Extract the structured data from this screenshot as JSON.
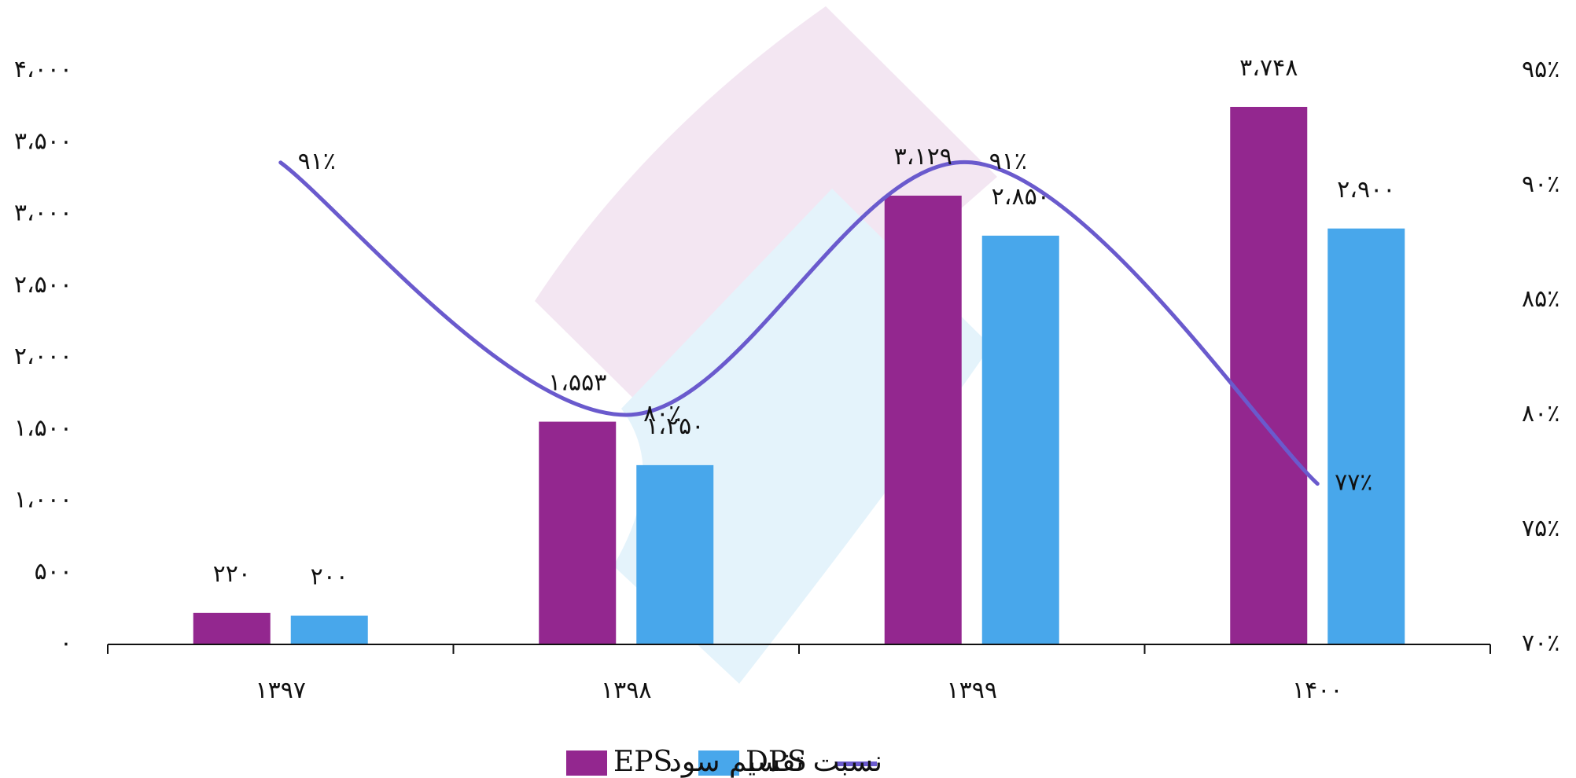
{
  "chart_data": {
    "type": "bar",
    "categories": [
      "۱۳۹۷",
      "۱۳۹۸",
      "۱۳۹۹",
      "۱۴۰۰"
    ],
    "series": [
      {
        "name": "EPS",
        "type": "bar",
        "axis": "left",
        "color": "#93278f",
        "values": [
          220,
          1553,
          3129,
          3748
        ],
        "labels": [
          "۲۲۰",
          "۱،۵۵۳",
          "۳،۱۲۹",
          "۳،۷۴۸"
        ]
      },
      {
        "name": "DPS",
        "type": "bar",
        "axis": "left",
        "color": "#48a7eb",
        "values": [
          200,
          1250,
          2850,
          2900
        ],
        "labels": [
          "۲۰۰",
          "۱،۲۵۰",
          "۲،۸۵۰",
          "۲،۹۰۰"
        ]
      },
      {
        "name": "نسبت تقسیم سود",
        "type": "line",
        "axis": "right",
        "color": "#6a5acd",
        "values": [
          91,
          80,
          91,
          77
        ],
        "labels": [
          "۹۱٪",
          "۸۰٪",
          "۹۱٪",
          "۷۷٪"
        ]
      }
    ],
    "y_left": {
      "ylim": [
        0,
        4000
      ],
      "ticks": [
        0,
        500,
        1000,
        1500,
        2000,
        2500,
        3000,
        3500,
        4000
      ],
      "tick_labels": [
        "۰",
        "۵۰۰",
        "۱،۰۰۰",
        "۱،۵۰۰",
        "۲،۰۰۰",
        "۲،۵۰۰",
        "۳،۰۰۰",
        "۳،۵۰۰",
        "۴،۰۰۰"
      ]
    },
    "y_right": {
      "ylim": [
        70,
        95
      ],
      "ticks": [
        70,
        75,
        80,
        85,
        90,
        95
      ],
      "tick_labels": [
        "۷۰٪",
        "۷۵٪",
        "۸۰٪",
        "۸۵٪",
        "۹۰٪",
        "۹۵٪"
      ]
    },
    "title": "",
    "xlabel": "",
    "ylabel": "",
    "grid": false,
    "legend_position": "bottom",
    "watermark_colors": [
      "#f3e6f2",
      "#e4f3fb"
    ]
  }
}
